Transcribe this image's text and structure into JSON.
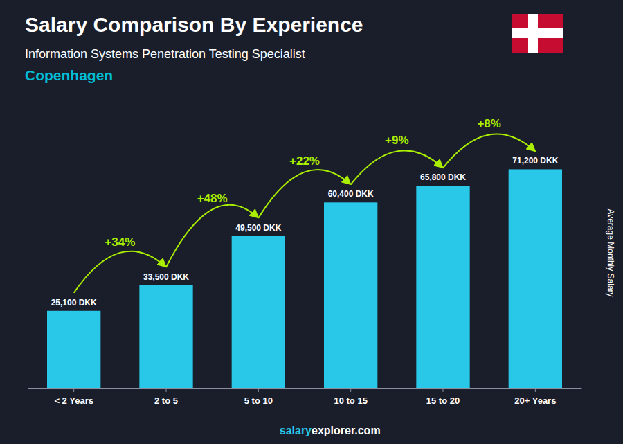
{
  "chart_data": {
    "type": "bar",
    "title": "Salary Comparison By Experience",
    "subtitle": "Information Systems Penetration Testing Specialist",
    "annotations": [
      "Copenhagen",
      "salary",
      "explorer.com"
    ],
    "y_label": "Average Monthly Salary",
    "categories": [
      "< 2 Years",
      "2 to 5",
      "5 to 10",
      "10 to 15",
      "15 to 20",
      "20+ Years"
    ],
    "values": [
      25100,
      33500,
      49500,
      60400,
      65800,
      71200
    ],
    "value_labels": [
      "25,100 DKK",
      "33,500 DKK",
      "49,500 DKK",
      "60,400 DKK",
      "65,800 DKK",
      "71,200 DKK"
    ],
    "data_labels": true,
    "change_labels": [
      "+34%",
      "+48%",
      "+22%",
      "+9%",
      "+8%"
    ],
    "color": "#29C8E8",
    "ylim": [
      0,
      88000
    ],
    "tick_labels": "x",
    "grid": false
  }
}
